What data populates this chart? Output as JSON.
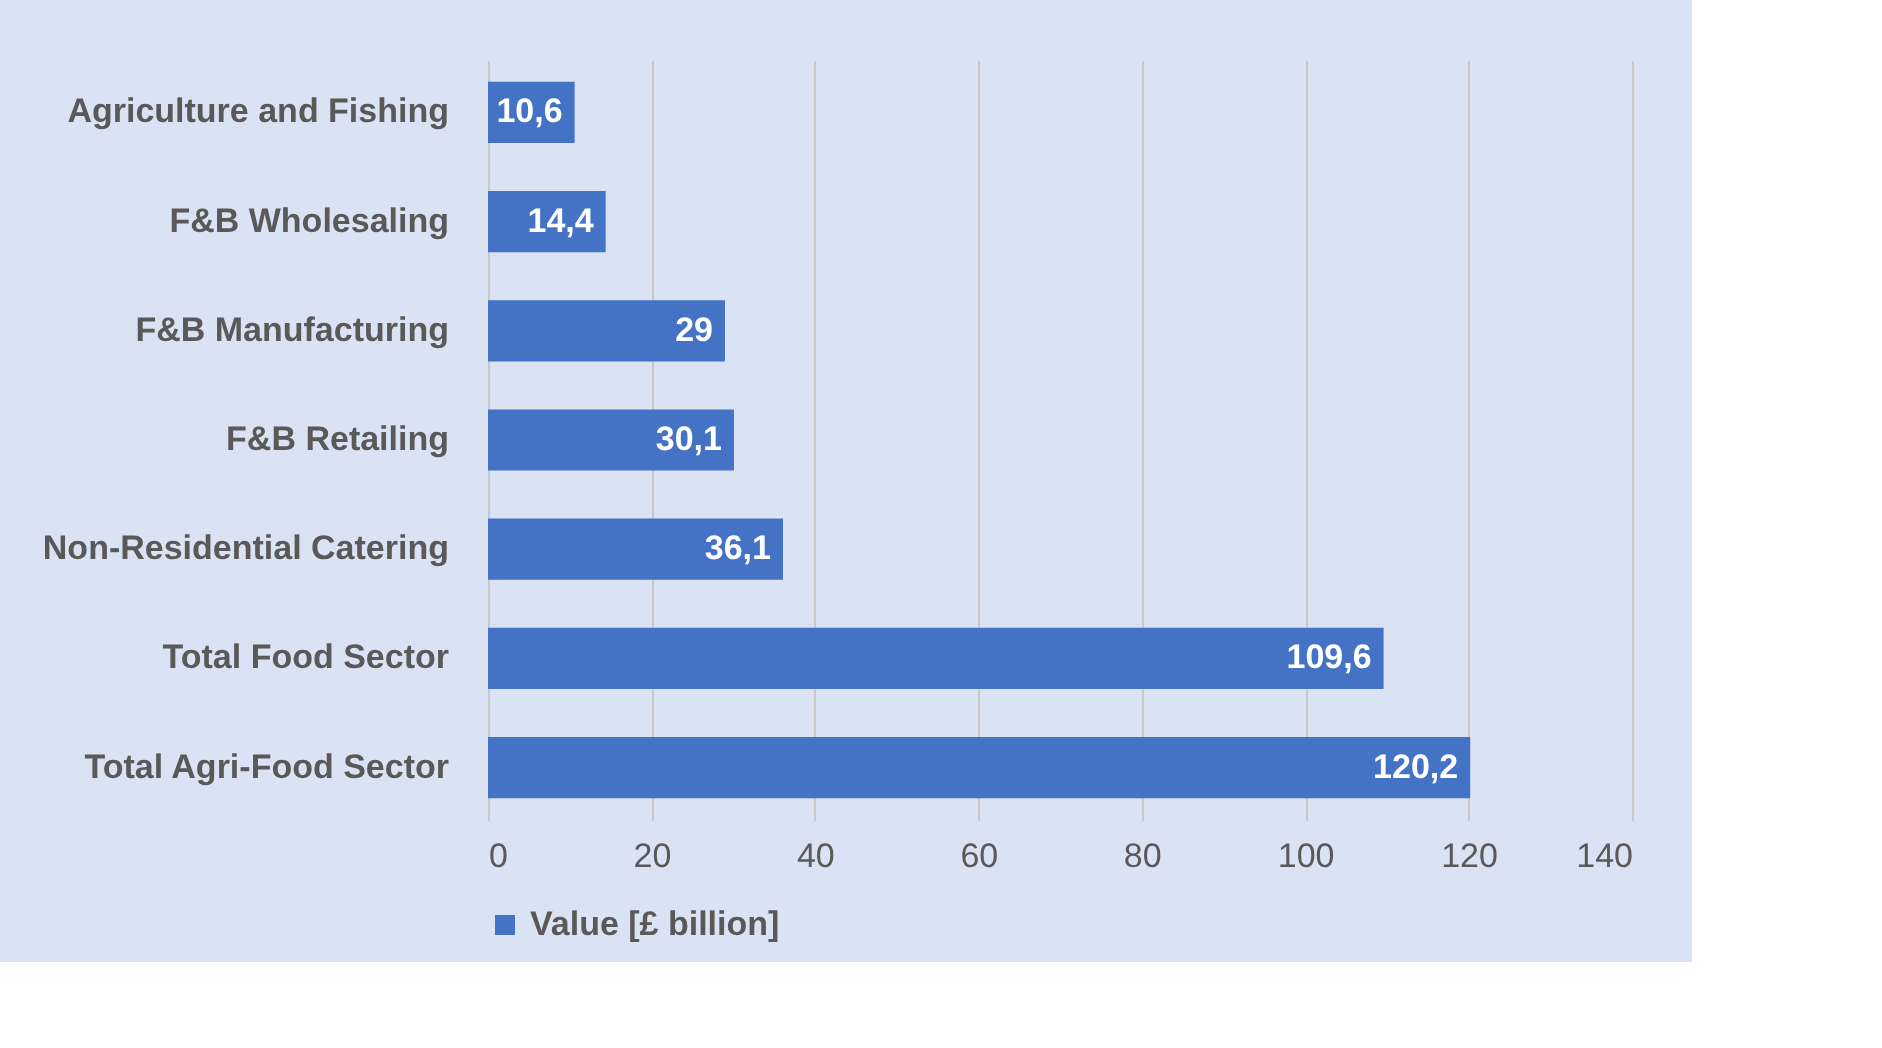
{
  "chart_data": {
    "type": "bar",
    "orientation": "horizontal",
    "categories": [
      "Agriculture and Fishing",
      "F&B Wholesaling",
      "F&B Manufacturing",
      "F&B Retailing",
      "Non-Residential Catering",
      "Total Food Sector",
      "Total Agri-Food Sector"
    ],
    "series": [
      {
        "name": "Value [£ billion]",
        "color": "#4472c4",
        "values": [
          10.6,
          14.4,
          29,
          30.1,
          36.1,
          109.6,
          120.2
        ],
        "value_labels": [
          "10,6",
          "14,4",
          "29",
          "30,1",
          "36,1",
          "109,6",
          "120,2"
        ]
      }
    ],
    "xlim": [
      0,
      140
    ],
    "xticks": [
      0,
      20,
      40,
      60,
      80,
      100,
      120,
      140
    ],
    "grid": "x",
    "legend": "bottom"
  }
}
